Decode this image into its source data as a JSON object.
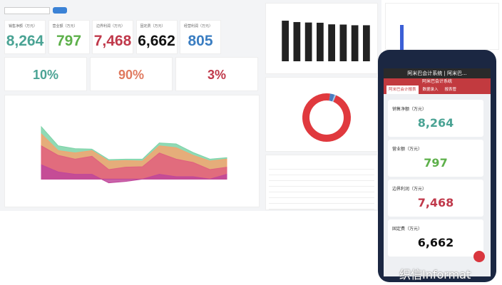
{
  "kpis": [
    {
      "label": "销售净额（万元）",
      "value": "8,264",
      "color": "#4aa394"
    },
    {
      "label": "营业额（万元）",
      "value": "797",
      "color": "#5db04a"
    },
    {
      "label": "边界利润（万元）",
      "value": "7,468",
      "color": "#c0394b"
    },
    {
      "label": "固定费（万元）",
      "value": "6,662",
      "color": "#111111"
    },
    {
      "label": "经营利润（万元）",
      "value": "805",
      "color": "#3b7ec2"
    }
  ],
  "ratios": [
    {
      "value": "10%",
      "color": "#4aa394"
    },
    {
      "value": "90%",
      "color": "#e07a5f"
    },
    {
      "value": "3%",
      "color": "#c0394b"
    }
  ],
  "phone": {
    "header": "阿米巴会计系统 | 阿米巴...",
    "banner": "阿米巴会计系统",
    "tabs": [
      "阿米巴会计报表",
      "数据录入",
      "报表管"
    ],
    "cards": [
      {
        "label": "销售净额（万元）",
        "value": "8,264",
        "color": "#4aa394"
      },
      {
        "label": "营业额（万元）",
        "value": "797",
        "color": "#5db04a"
      },
      {
        "label": "边界利润（万元）",
        "value": "7,468",
        "color": "#c0394b"
      },
      {
        "label": "固定费（万元）",
        "value": "6,662",
        "color": "#111111"
      }
    ]
  },
  "watermark": "织信Informat",
  "chart_data": [
    {
      "type": "bar",
      "values": [
        890,
        860,
        850,
        845,
        810,
        805,
        790,
        790
      ],
      "color": "#222222",
      "ylim": [
        0,
        1000
      ]
    },
    {
      "type": "donut",
      "values": [
        96,
        3,
        1
      ],
      "colors": [
        "#e0393e",
        "#4a7cc0",
        "#9cc7e6"
      ]
    },
    {
      "type": "area",
      "ylim": [
        -400,
        1400
      ],
      "x": [
        1,
        2,
        3,
        4,
        5,
        6,
        7,
        8,
        9,
        10,
        11,
        12
      ],
      "series": [
        {
          "color": "#7dd3a8",
          "values": [
            1100,
            700,
            640,
            630,
            410,
            420,
            420,
            760,
            740,
            560,
            420,
            450
          ]
        },
        {
          "color": "#f4a470",
          "values": [
            950,
            600,
            550,
            600,
            380,
            390,
            380,
            700,
            660,
            500,
            380,
            420
          ]
        },
        {
          "color": "#e0607e",
          "values": [
            700,
            500,
            420,
            480,
            200,
            250,
            260,
            550,
            420,
            350,
            200,
            250
          ]
        },
        {
          "color": "#c0479a",
          "values": [
            300,
            150,
            100,
            100,
            -80,
            -50,
            0,
            100,
            50,
            50,
            0,
            100
          ]
        }
      ]
    }
  ]
}
